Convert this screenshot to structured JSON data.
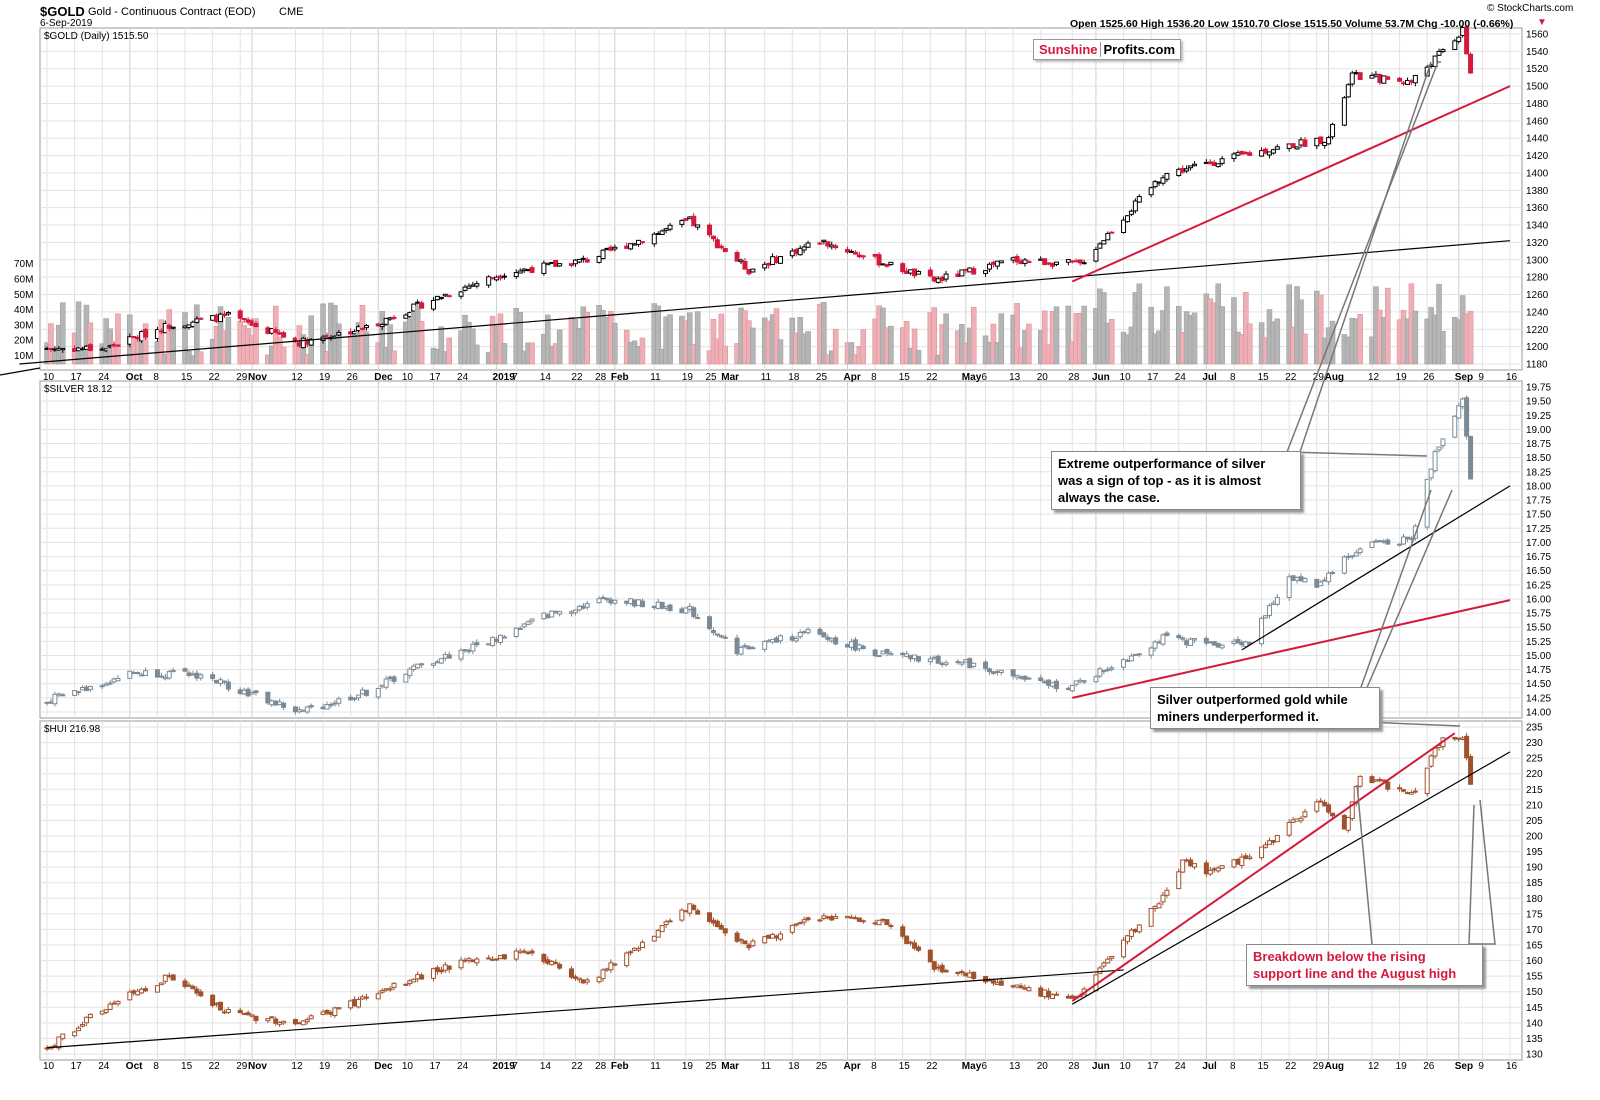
{
  "header": {
    "symbol": "$GOLD",
    "description": "Gold - Continuous Contract (EOD)",
    "exchange": "CME",
    "date": "6-Sep-2019",
    "watermark": "© StockCharts.com",
    "quote": "Open 1525.60  High 1536.20  Low 1510.70  Close 1515.50  Volume 53.7M  Chg -10.00 (-0.66%)",
    "chg_marker": "▼"
  },
  "logo": {
    "part1": "Sunshine",
    "part2": "Profits.com"
  },
  "colors": {
    "up": "#000000",
    "down": "#d41a3c",
    "silver": "#7a8a96",
    "hui": "#a0522d",
    "trend_red": "#d41a3c",
    "trend_black": "#000000",
    "grid": "#e3e3e3"
  },
  "panels": {
    "gold": {
      "label": "$GOLD (Daily) 1515.50"
    },
    "silver": {
      "label": "$SILVER 18.12"
    },
    "hui": {
      "label": "$HUI 216.98"
    }
  },
  "annotations": {
    "silver_top": "Extreme outperformance of silver\nwas a sign of top - as it is almost\nalways the case.",
    "outperform": "Silver outperformed gold while\nminers underperformed it.",
    "breakdown": "Breakdown below the rising\nsupport line and the August high"
  },
  "chart_data": [
    {
      "type": "candlestick",
      "name": "$GOLD (Daily)",
      "ylim": [
        1180,
        1560
      ],
      "y_ticks": [
        1180,
        1200,
        1220,
        1240,
        1260,
        1280,
        1300,
        1320,
        1340,
        1360,
        1380,
        1400,
        1420,
        1440,
        1460,
        1480,
        1500,
        1520,
        1540,
        1560
      ],
      "volume_ticks": [
        "10M",
        "20M",
        "30M",
        "40M",
        "50M",
        "60M",
        "70M"
      ],
      "anchors": [
        [
          "2018-09-10",
          1198
        ],
        [
          "2018-09-25",
          1198
        ],
        [
          "2018-10-11",
          1225
        ],
        [
          "2018-10-26",
          1235
        ],
        [
          "2018-11-13",
          1205
        ],
        [
          "2018-11-30",
          1222
        ],
        [
          "2018-12-20",
          1260
        ],
        [
          "2019-01-04",
          1285
        ],
        [
          "2019-01-25",
          1300
        ],
        [
          "2019-02-20",
          1345
        ],
        [
          "2019-03-07",
          1288
        ],
        [
          "2019-03-25",
          1322
        ],
        [
          "2019-04-11",
          1295
        ],
        [
          "2019-04-23",
          1276
        ],
        [
          "2019-05-13",
          1300
        ],
        [
          "2019-05-30",
          1295
        ],
        [
          "2019-06-20",
          1398
        ],
        [
          "2019-07-02",
          1412
        ],
        [
          "2019-07-18",
          1428
        ],
        [
          "2019-08-01",
          1440
        ],
        [
          "2019-08-07",
          1512
        ],
        [
          "2019-08-22",
          1505
        ],
        [
          "2019-09-04",
          1563
        ],
        [
          "2019-09-06",
          1515
        ]
      ],
      "trendlines": [
        {
          "color": "black",
          "from": [
            "2018-09-03",
            1180
          ],
          "to": [
            "2019-09-16",
            1322
          ]
        },
        {
          "color": "red",
          "from": [
            "2019-05-28",
            1275
          ],
          "to": [
            "2019-09-16",
            1500
          ]
        }
      ]
    },
    {
      "type": "candlestick",
      "name": "$SILVER",
      "ylim": [
        14.0,
        19.75
      ],
      "y_ticks": [
        14.0,
        14.25,
        14.5,
        14.75,
        15.0,
        15.25,
        15.5,
        15.75,
        16.0,
        16.25,
        16.5,
        16.75,
        17.0,
        17.25,
        17.5,
        17.75,
        18.0,
        18.25,
        18.5,
        18.75,
        19.0,
        19.25,
        19.5,
        19.75
      ],
      "anchors": [
        [
          "2018-09-10",
          14.2
        ],
        [
          "2018-10-02",
          14.7
        ],
        [
          "2018-10-19",
          14.65
        ],
        [
          "2018-11-13",
          14.0
        ],
        [
          "2018-11-30",
          14.35
        ],
        [
          "2018-12-13",
          14.8
        ],
        [
          "2019-01-02",
          15.3
        ],
        [
          "2019-01-14",
          15.7
        ],
        [
          "2019-01-30",
          16.0
        ],
        [
          "2019-02-20",
          15.8
        ],
        [
          "2019-03-04",
          15.1
        ],
        [
          "2019-03-22",
          15.4
        ],
        [
          "2019-04-11",
          15.0
        ],
        [
          "2019-05-02",
          14.85
        ],
        [
          "2019-05-20",
          14.5
        ],
        [
          "2019-05-28",
          14.45
        ],
        [
          "2019-06-20",
          15.3
        ],
        [
          "2019-07-03",
          15.2
        ],
        [
          "2019-07-12",
          15.25
        ],
        [
          "2019-07-22",
          16.4
        ],
        [
          "2019-07-29",
          16.25
        ],
        [
          "2019-08-05",
          16.7
        ],
        [
          "2019-08-12",
          17.0
        ],
        [
          "2019-08-22",
          17.05
        ],
        [
          "2019-08-28",
          18.6
        ],
        [
          "2019-09-04",
          19.55
        ],
        [
          "2019-09-06",
          18.12
        ]
      ],
      "trendlines": [
        {
          "color": "red",
          "from": [
            "2019-05-28",
            14.25
          ],
          "to": [
            "2019-09-16",
            15.98
          ]
        },
        {
          "color": "black",
          "from": [
            "2019-07-10",
            15.1
          ],
          "to": [
            "2019-09-16",
            18.0
          ]
        }
      ]
    },
    {
      "type": "candlestick",
      "name": "$HUI",
      "ylim": [
        130,
        235
      ],
      "y_ticks": [
        130,
        135,
        140,
        145,
        150,
        155,
        160,
        165,
        170,
        175,
        180,
        185,
        190,
        195,
        200,
        205,
        210,
        215,
        220,
        225,
        230,
        235
      ],
      "anchors": [
        [
          "2018-09-10",
          132
        ],
        [
          "2018-09-25",
          145
        ],
        [
          "2018-10-11",
          155
        ],
        [
          "2018-10-26",
          143
        ],
        [
          "2018-11-13",
          140
        ],
        [
          "2018-11-30",
          148
        ],
        [
          "2018-12-20",
          158
        ],
        [
          "2019-01-10",
          163
        ],
        [
          "2019-01-25",
          153
        ],
        [
          "2019-02-20",
          177
        ],
        [
          "2019-03-07",
          165
        ],
        [
          "2019-03-25",
          174
        ],
        [
          "2019-04-11",
          172
        ],
        [
          "2019-04-23",
          158
        ],
        [
          "2019-05-13",
          152
        ],
        [
          "2019-05-28",
          147
        ],
        [
          "2019-06-20",
          180
        ],
        [
          "2019-06-25",
          192
        ],
        [
          "2019-07-03",
          188
        ],
        [
          "2019-07-18",
          198
        ],
        [
          "2019-07-29",
          212
        ],
        [
          "2019-08-05",
          202
        ],
        [
          "2019-08-09",
          220
        ],
        [
          "2019-08-22",
          213
        ],
        [
          "2019-08-29",
          230
        ],
        [
          "2019-09-04",
          232
        ],
        [
          "2019-09-06",
          217
        ]
      ],
      "trendlines": [
        {
          "color": "black",
          "from": [
            "2018-09-10",
            132
          ],
          "to": [
            "2019-06-10",
            157
          ]
        },
        {
          "color": "red",
          "from": [
            "2019-05-28",
            147
          ],
          "to": [
            "2019-09-02",
            233
          ]
        },
        {
          "color": "black",
          "from": [
            "2019-05-28",
            146
          ],
          "to": [
            "2019-09-16",
            227
          ]
        }
      ]
    }
  ],
  "x_axis": {
    "labels": [
      {
        "date": "2018-09-10",
        "text": "10"
      },
      {
        "date": "2018-09-17",
        "text": "17"
      },
      {
        "date": "2018-09-24",
        "text": "24"
      },
      {
        "date": "2018-10-01",
        "text": "Oct",
        "bold": true
      },
      {
        "date": "2018-10-08",
        "text": "8"
      },
      {
        "date": "2018-10-15",
        "text": "15"
      },
      {
        "date": "2018-10-22",
        "text": "22"
      },
      {
        "date": "2018-10-29",
        "text": "29"
      },
      {
        "date": "2018-11-01",
        "text": "Nov",
        "bold": true
      },
      {
        "date": "2018-11-12",
        "text": "12"
      },
      {
        "date": "2018-11-19",
        "text": "19"
      },
      {
        "date": "2018-11-26",
        "text": "26"
      },
      {
        "date": "2018-12-03",
        "text": "Dec",
        "bold": true
      },
      {
        "date": "2018-12-10",
        "text": "10"
      },
      {
        "date": "2018-12-17",
        "text": "17"
      },
      {
        "date": "2018-12-24",
        "text": "24"
      },
      {
        "date": "2019-01-02",
        "text": "2019",
        "bold": true
      },
      {
        "date": "2019-01-07",
        "text": "7"
      },
      {
        "date": "2019-01-14",
        "text": "14"
      },
      {
        "date": "2019-01-22",
        "text": "22"
      },
      {
        "date": "2019-01-28",
        "text": "28"
      },
      {
        "date": "2019-02-01",
        "text": "Feb",
        "bold": true
      },
      {
        "date": "2019-02-11",
        "text": "11"
      },
      {
        "date": "2019-02-19",
        "text": "19"
      },
      {
        "date": "2019-02-25",
        "text": "25"
      },
      {
        "date": "2019-03-01",
        "text": "Mar",
        "bold": true
      },
      {
        "date": "2019-03-11",
        "text": "11"
      },
      {
        "date": "2019-03-18",
        "text": "18"
      },
      {
        "date": "2019-03-25",
        "text": "25"
      },
      {
        "date": "2019-04-01",
        "text": "Apr",
        "bold": true
      },
      {
        "date": "2019-04-08",
        "text": "8"
      },
      {
        "date": "2019-04-15",
        "text": "15"
      },
      {
        "date": "2019-04-22",
        "text": "22"
      },
      {
        "date": "2019-05-01",
        "text": "May",
        "bold": true
      },
      {
        "date": "2019-05-06",
        "text": "6"
      },
      {
        "date": "2019-05-13",
        "text": "13"
      },
      {
        "date": "2019-05-20",
        "text": "20"
      },
      {
        "date": "2019-05-28",
        "text": "28"
      },
      {
        "date": "2019-06-03",
        "text": "Jun",
        "bold": true
      },
      {
        "date": "2019-06-10",
        "text": "10"
      },
      {
        "date": "2019-06-17",
        "text": "17"
      },
      {
        "date": "2019-06-24",
        "text": "24"
      },
      {
        "date": "2019-07-01",
        "text": "Jul",
        "bold": true
      },
      {
        "date": "2019-07-08",
        "text": "8"
      },
      {
        "date": "2019-07-15",
        "text": "15"
      },
      {
        "date": "2019-07-22",
        "text": "22"
      },
      {
        "date": "2019-07-29",
        "text": "29"
      },
      {
        "date": "2019-08-01",
        "text": "Aug",
        "bold": true
      },
      {
        "date": "2019-08-12",
        "text": "12"
      },
      {
        "date": "2019-08-19",
        "text": "19"
      },
      {
        "date": "2019-08-26",
        "text": "26"
      },
      {
        "date": "2019-09-03",
        "text": "Sep",
        "bold": true
      },
      {
        "date": "2019-09-09",
        "text": "9"
      },
      {
        "date": "2019-09-16",
        "text": "16"
      }
    ],
    "start": "2018-09-10",
    "end": "2019-09-16"
  }
}
